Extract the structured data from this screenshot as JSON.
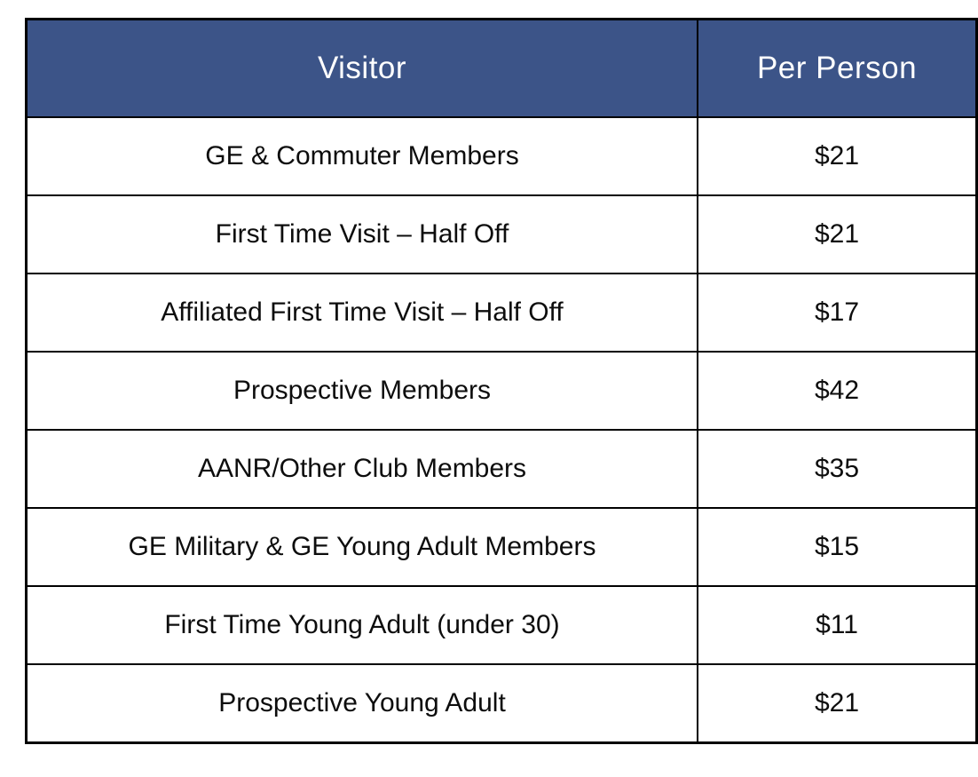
{
  "page": {
    "background_color": "#ffffff"
  },
  "table": {
    "header_bg_color": "#3C5488",
    "header_text_color": "#ffffff",
    "body_text_color": "#0d0d0d",
    "border_color": "#000000",
    "header": {
      "visitor": "Visitor",
      "per_person": "Per Person"
    },
    "rows": [
      {
        "visitor": "GE & Commuter Members",
        "price": "$21"
      },
      {
        "visitor": "First Time Visit – Half Off",
        "price": "$21"
      },
      {
        "visitor": "Affiliated First Time Visit – Half Off",
        "price": "$17"
      },
      {
        "visitor": "Prospective Members",
        "price": "$42"
      },
      {
        "visitor": "AANR/Other Club Members",
        "price": "$35"
      },
      {
        "visitor": "GE Military & GE Young Adult Members",
        "price": "$15"
      },
      {
        "visitor": "First Time Young Adult (under 30)",
        "price": "$11"
      },
      {
        "visitor": "Prospective Young Adult",
        "price": "$21"
      }
    ]
  }
}
